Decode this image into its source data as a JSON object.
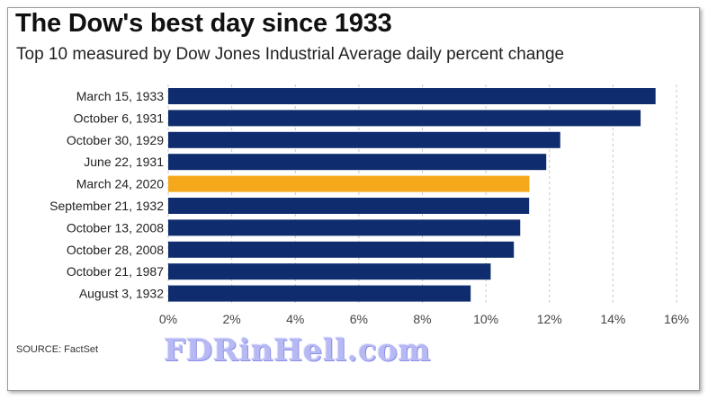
{
  "chart_data": {
    "type": "bar",
    "orientation": "horizontal",
    "title": "The Dow's best day since 1933",
    "subtitle": "Top 10 measured by Dow Jones Industrial Average daily percent change",
    "source": "SOURCE: FactSet",
    "categories": [
      "March 15, 1933",
      "October 6, 1931",
      "October 30, 1929",
      "June 22, 1931",
      "March 24, 2020",
      "September 21, 1932",
      "October 13, 2008",
      "October 28, 2008",
      "October 21, 1987",
      "August 3, 1932"
    ],
    "values": [
      15.34,
      14.87,
      12.34,
      11.9,
      11.37,
      11.36,
      11.08,
      10.88,
      10.15,
      9.52
    ],
    "highlight_category": "March 24, 2020",
    "xlim": [
      0,
      16
    ],
    "x_ticks": [
      0,
      2,
      4,
      6,
      8,
      10,
      12,
      14,
      16
    ],
    "x_tick_labels": [
      "0%",
      "2%",
      "4%",
      "6%",
      "8%",
      "10%",
      "12%",
      "14%",
      "16%"
    ],
    "grid": "vertical dashed",
    "legend": "none",
    "colors": {
      "bar": "#0e2c6e",
      "highlight": "#f5a91a",
      "grid": "#c8c8c8"
    }
  },
  "watermark": "FDRinHell.com"
}
